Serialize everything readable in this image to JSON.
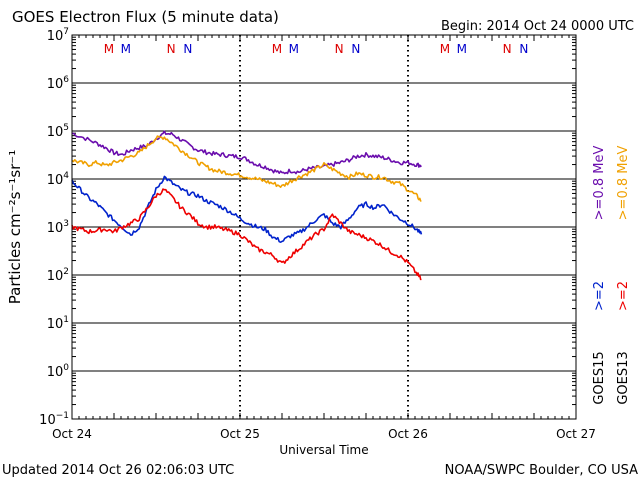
{
  "chart_data": {
    "type": "line",
    "title": "GOES Electron Flux (5 minute data)",
    "begin_label": "Begin: 2014 Oct 24 0000 UTC",
    "xlabel": "Universal Time",
    "ylabel": "Particles cm⁻²s⁻¹sr⁻¹",
    "y_scale": "log",
    "ylim": [
      0.1,
      10000000
    ],
    "y_ticks": [
      {
        "value": 10000000,
        "base": "10",
        "exp": "7"
      },
      {
        "value": 1000000,
        "base": "10",
        "exp": "6"
      },
      {
        "value": 100000,
        "base": "10",
        "exp": "5"
      },
      {
        "value": 10000,
        "base": "10",
        "exp": "4"
      },
      {
        "value": 1000,
        "base": "10",
        "exp": "3"
      },
      {
        "value": 100,
        "base": "10",
        "exp": "2"
      },
      {
        "value": 10,
        "base": "10",
        "exp": "1"
      },
      {
        "value": 1,
        "base": "10",
        "exp": "0"
      },
      {
        "value": 0.1,
        "base": "10",
        "exp": "−1"
      }
    ],
    "xlim_days": [
      0,
      3
    ],
    "x_ticks": [
      {
        "day": 0,
        "label": "Oct 24"
      },
      {
        "day": 1,
        "label": "Oct 25"
      },
      {
        "day": 2,
        "label": "Oct 26"
      },
      {
        "day": 3,
        "label": "Oct 27"
      }
    ],
    "threshold_line": 1000,
    "mn_markers": [
      {
        "day": 0.22,
        "letter": "M",
        "color": "#dd0000"
      },
      {
        "day": 0.32,
        "letter": "M",
        "color": "#0000cc"
      },
      {
        "day": 0.59,
        "letter": "N",
        "color": "#dd0000"
      },
      {
        "day": 0.69,
        "letter": "N",
        "color": "#0000cc"
      },
      {
        "day": 1.22,
        "letter": "M",
        "color": "#dd0000"
      },
      {
        "day": 1.32,
        "letter": "M",
        "color": "#0000cc"
      },
      {
        "day": 1.59,
        "letter": "N",
        "color": "#dd0000"
      },
      {
        "day": 1.69,
        "letter": "N",
        "color": "#0000cc"
      },
      {
        "day": 2.22,
        "letter": "M",
        "color": "#dd0000"
      },
      {
        "day": 2.32,
        "letter": "M",
        "color": "#0000cc"
      },
      {
        "day": 2.59,
        "letter": "N",
        "color": "#dd0000"
      },
      {
        "day": 2.69,
        "letter": "N",
        "color": "#0000cc"
      }
    ],
    "series": [
      {
        "name": ">=0.8 MeV GOES15",
        "color": "#6a0dad",
        "points": [
          [
            0,
            90000
          ],
          [
            0.08,
            70000
          ],
          [
            0.15,
            55000
          ],
          [
            0.2,
            45000
          ],
          [
            0.25,
            35000
          ],
          [
            0.3,
            32000
          ],
          [
            0.35,
            40000
          ],
          [
            0.4,
            45000
          ],
          [
            0.45,
            50000
          ],
          [
            0.5,
            70000
          ],
          [
            0.55,
            90000
          ],
          [
            0.6,
            85000
          ],
          [
            0.65,
            65000
          ],
          [
            0.7,
            50000
          ],
          [
            0.75,
            40000
          ],
          [
            0.8,
            36000
          ],
          [
            0.85,
            33000
          ],
          [
            0.9,
            32000
          ],
          [
            0.95,
            30000
          ],
          [
            1.0,
            29000
          ],
          [
            1.05,
            25000
          ],
          [
            1.1,
            20000
          ],
          [
            1.15,
            18000
          ],
          [
            1.2,
            15000
          ],
          [
            1.25,
            13000
          ],
          [
            1.3,
            15000
          ],
          [
            1.35,
            14000
          ],
          [
            1.4,
            16000
          ],
          [
            1.45,
            17000
          ],
          [
            1.5,
            18000
          ],
          [
            1.55,
            20000
          ],
          [
            1.6,
            22000
          ],
          [
            1.65,
            25000
          ],
          [
            1.7,
            30000
          ],
          [
            1.75,
            32000
          ],
          [
            1.8,
            30000
          ],
          [
            1.85,
            28000
          ],
          [
            1.9,
            25000
          ],
          [
            1.95,
            22000
          ],
          [
            2.0,
            22000
          ],
          [
            2.05,
            20000
          ],
          [
            2.08,
            19000
          ]
        ]
      },
      {
        "name": ">=0.8 MeV GOES13",
        "color": "#f0a000",
        "points": [
          [
            0,
            25000
          ],
          [
            0.05,
            22000
          ],
          [
            0.1,
            20000
          ],
          [
            0.15,
            22000
          ],
          [
            0.2,
            19000
          ],
          [
            0.25,
            22000
          ],
          [
            0.3,
            25000
          ],
          [
            0.35,
            30000
          ],
          [
            0.4,
            35000
          ],
          [
            0.45,
            50000
          ],
          [
            0.5,
            70000
          ],
          [
            0.55,
            75000
          ],
          [
            0.6,
            55000
          ],
          [
            0.65,
            40000
          ],
          [
            0.7,
            30000
          ],
          [
            0.75,
            22000
          ],
          [
            0.8,
            18000
          ],
          [
            0.85,
            15000
          ],
          [
            0.9,
            14000
          ],
          [
            0.95,
            13000
          ],
          [
            1.0,
            12000
          ],
          [
            1.05,
            11000
          ],
          [
            1.1,
            10000
          ],
          [
            1.15,
            9000
          ],
          [
            1.2,
            8000
          ],
          [
            1.25,
            7000
          ],
          [
            1.3,
            9000
          ],
          [
            1.35,
            11000
          ],
          [
            1.4,
            13000
          ],
          [
            1.45,
            16000
          ],
          [
            1.5,
            20000
          ],
          [
            1.55,
            16000
          ],
          [
            1.6,
            13000
          ],
          [
            1.65,
            11000
          ],
          [
            1.7,
            13000
          ],
          [
            1.75,
            12000
          ],
          [
            1.8,
            11000
          ],
          [
            1.85,
            11000
          ],
          [
            1.9,
            9000
          ],
          [
            1.95,
            8000
          ],
          [
            2.0,
            6000
          ],
          [
            2.05,
            4500
          ],
          [
            2.08,
            3500
          ]
        ]
      },
      {
        "name": ">=2 MeV GOES15",
        "color": "#0022cc",
        "points": [
          [
            0,
            9000
          ],
          [
            0.05,
            6000
          ],
          [
            0.1,
            4000
          ],
          [
            0.15,
            3000
          ],
          [
            0.2,
            2000
          ],
          [
            0.25,
            1400
          ],
          [
            0.3,
            1000
          ],
          [
            0.35,
            700
          ],
          [
            0.4,
            1000
          ],
          [
            0.45,
            2500
          ],
          [
            0.5,
            6000
          ],
          [
            0.55,
            11000
          ],
          [
            0.6,
            8000
          ],
          [
            0.65,
            6000
          ],
          [
            0.7,
            5000
          ],
          [
            0.75,
            4500
          ],
          [
            0.8,
            3500
          ],
          [
            0.85,
            3000
          ],
          [
            0.9,
            2500
          ],
          [
            0.95,
            2000
          ],
          [
            1.0,
            1500
          ],
          [
            1.05,
            1200
          ],
          [
            1.1,
            1000
          ],
          [
            1.15,
            900
          ],
          [
            1.2,
            600
          ],
          [
            1.25,
            500
          ],
          [
            1.3,
            650
          ],
          [
            1.35,
            750
          ],
          [
            1.4,
            1000
          ],
          [
            1.45,
            1400
          ],
          [
            1.5,
            1800
          ],
          [
            1.55,
            1200
          ],
          [
            1.6,
            1000
          ],
          [
            1.65,
            1500
          ],
          [
            1.7,
            2500
          ],
          [
            1.75,
            3000
          ],
          [
            1.8,
            2500
          ],
          [
            1.85,
            3000
          ],
          [
            1.9,
            2000
          ],
          [
            1.95,
            1500
          ],
          [
            2.0,
            1200
          ],
          [
            2.05,
            900
          ],
          [
            2.08,
            700
          ]
        ]
      },
      {
        "name": ">=2 MeV GOES13",
        "color": "#ee0000",
        "points": [
          [
            0,
            1000
          ],
          [
            0.05,
            900
          ],
          [
            0.1,
            800
          ],
          [
            0.15,
            850
          ],
          [
            0.2,
            900
          ],
          [
            0.25,
            800
          ],
          [
            0.3,
            1000
          ],
          [
            0.35,
            1200
          ],
          [
            0.4,
            1500
          ],
          [
            0.45,
            2500
          ],
          [
            0.5,
            4500
          ],
          [
            0.55,
            6000
          ],
          [
            0.6,
            4000
          ],
          [
            0.65,
            2500
          ],
          [
            0.7,
            1800
          ],
          [
            0.75,
            1200
          ],
          [
            0.8,
            1000
          ],
          [
            0.85,
            1000
          ],
          [
            0.9,
            900
          ],
          [
            0.95,
            800
          ],
          [
            1.0,
            700
          ],
          [
            1.05,
            500
          ],
          [
            1.1,
            350
          ],
          [
            1.15,
            300
          ],
          [
            1.2,
            250
          ],
          [
            1.25,
            170
          ],
          [
            1.3,
            250
          ],
          [
            1.35,
            350
          ],
          [
            1.4,
            500
          ],
          [
            1.45,
            700
          ],
          [
            1.5,
            900
          ],
          [
            1.55,
            1800
          ],
          [
            1.6,
            1200
          ],
          [
            1.65,
            800
          ],
          [
            1.7,
            700
          ],
          [
            1.75,
            600
          ],
          [
            1.8,
            500
          ],
          [
            1.85,
            400
          ],
          [
            1.9,
            300
          ],
          [
            1.95,
            250
          ],
          [
            2.0,
            180
          ],
          [
            2.05,
            110
          ],
          [
            2.08,
            80
          ]
        ]
      }
    ],
    "legend": [
      {
        "text": ">=0.8 MeV",
        "color": "#6a0dad"
      },
      {
        "text": ">=0.8 MeV",
        "color": "#f0a000"
      },
      {
        "text": ">=2",
        "color": "#0022cc"
      },
      {
        "text": ">=2",
        "color": "#ee0000"
      },
      {
        "text": "GOES15",
        "color": "#000000"
      },
      {
        "text": "GOES13",
        "color": "#000000"
      }
    ],
    "footer_left": "Updated 2014 Oct 26 02:06:03 UTC",
    "footer_right": "NOAA/SWPC Boulder, CO USA"
  }
}
